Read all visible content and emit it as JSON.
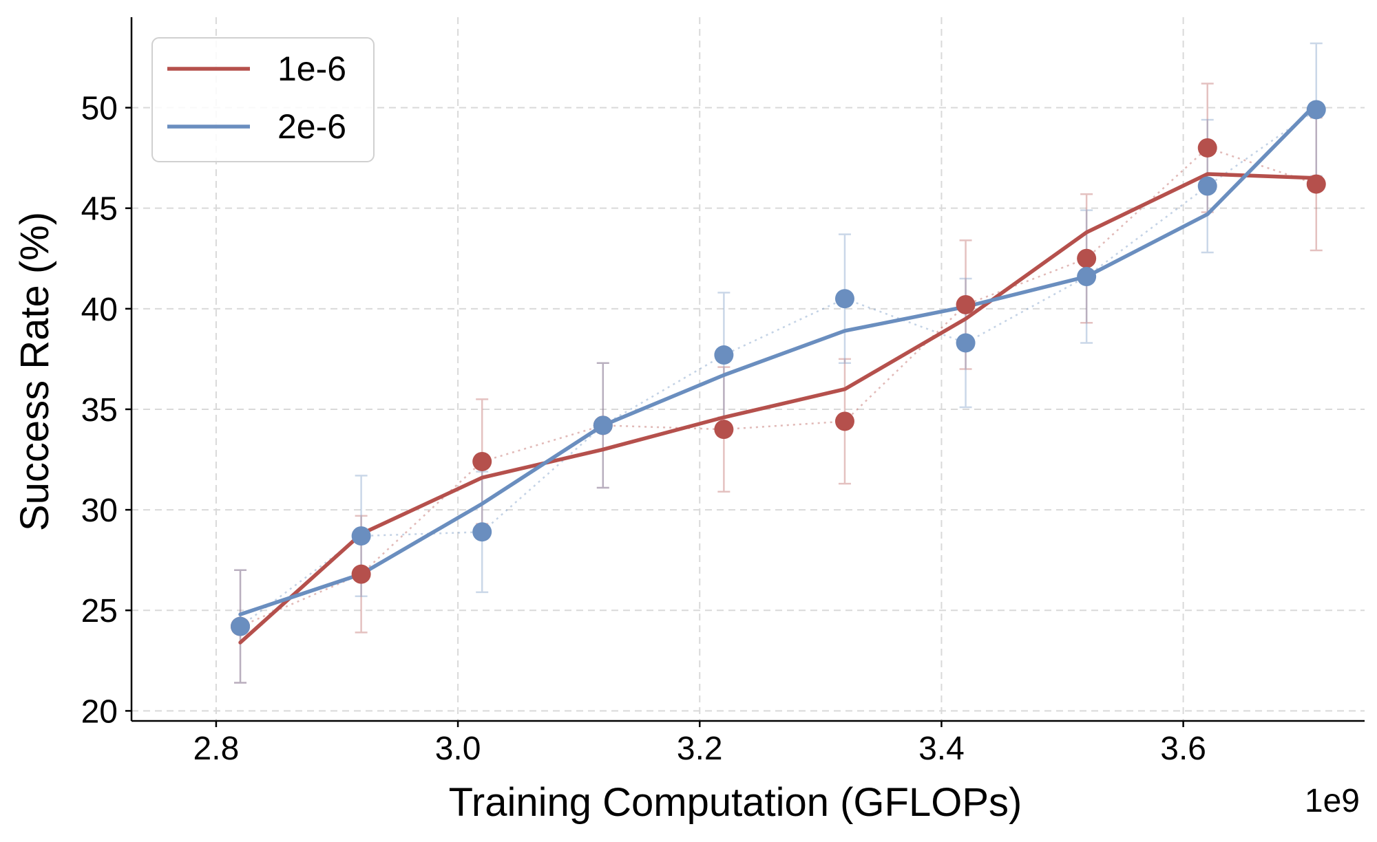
{
  "chart_data": {
    "type": "line",
    "xlabel": "Training Computation (GFLOPs)",
    "ylabel": "Success Rate (%)",
    "x_offset_label": "1e9",
    "x_multiplier": 1000000000.0,
    "xlim": [
      2.73,
      3.75
    ],
    "ylim": [
      19.5,
      54.5
    ],
    "xticks": [
      2.8,
      3.0,
      3.2,
      3.4,
      3.6
    ],
    "xtick_labels": [
      "2.8",
      "3.0",
      "3.2",
      "3.4",
      "3.6"
    ],
    "yticks": [
      20,
      25,
      30,
      35,
      40,
      45,
      50
    ],
    "ytick_labels": [
      "20",
      "25",
      "30",
      "35",
      "40",
      "45",
      "50"
    ],
    "grid": true,
    "legend_position": "top-left",
    "x": [
      2.82,
      2.92,
      3.02,
      3.12,
      3.22,
      3.32,
      3.42,
      3.52,
      3.62,
      3.71
    ],
    "series": [
      {
        "name": "1e-6",
        "color": "#b5504c",
        "points": [
          24.2,
          26.8,
          32.4,
          34.2,
          34.0,
          34.4,
          40.2,
          42.5,
          48.0,
          46.2
        ],
        "error": [
          2.8,
          2.9,
          3.1,
          3.1,
          3.1,
          3.1,
          3.2,
          3.2,
          3.2,
          3.3
        ],
        "trend": [
          23.4,
          28.8,
          31.6,
          33.0,
          34.6,
          36.0,
          39.5,
          43.8,
          46.7,
          46.5
        ]
      },
      {
        "name": "2e-6",
        "color": "#6a8ebf",
        "points": [
          24.2,
          28.7,
          28.9,
          34.2,
          37.7,
          40.5,
          38.3,
          41.6,
          46.1,
          49.9
        ],
        "error": [
          2.8,
          3.0,
          3.0,
          3.1,
          3.1,
          3.2,
          3.2,
          3.3,
          3.3,
          3.3
        ],
        "trend": [
          24.8,
          26.8,
          30.3,
          34.2,
          36.7,
          38.9,
          40.1,
          41.6,
          44.7,
          50.2
        ]
      }
    ]
  }
}
